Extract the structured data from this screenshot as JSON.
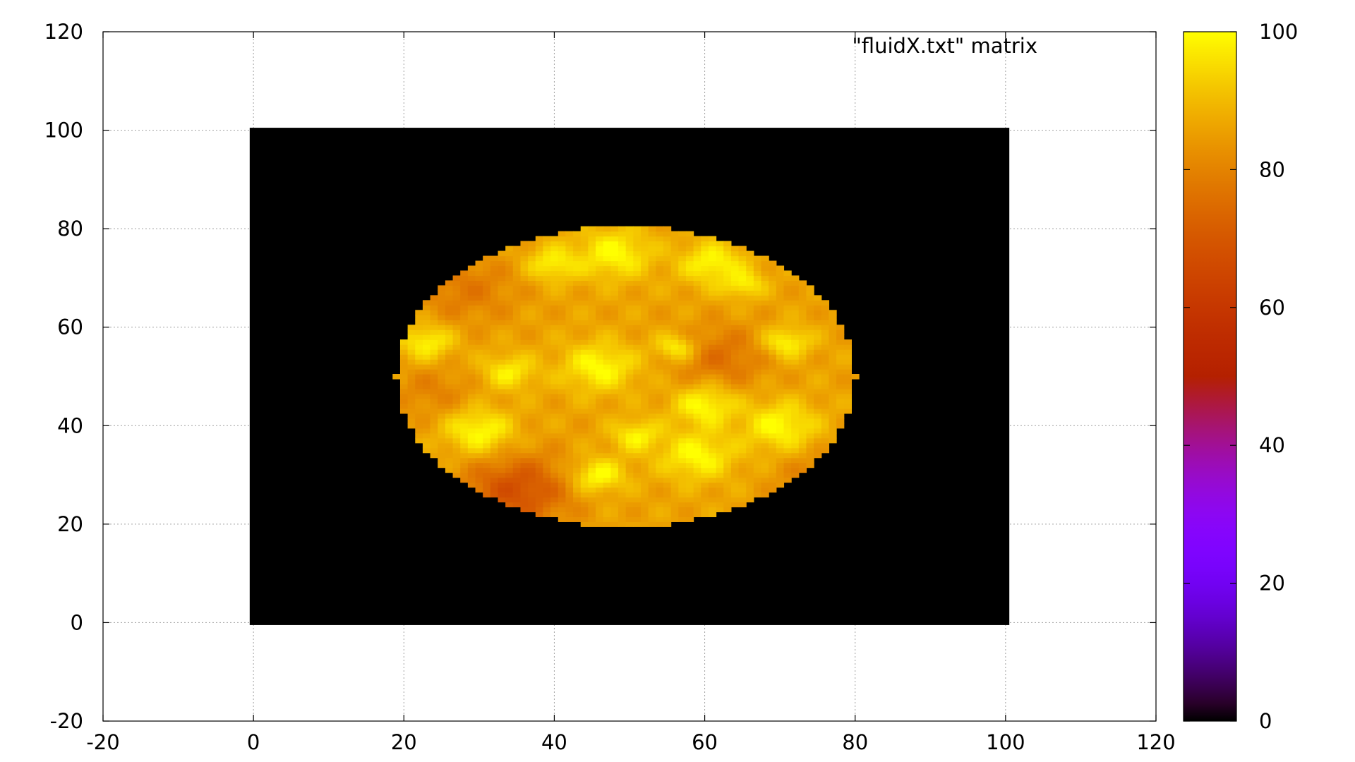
{
  "chart_data": {
    "type": "heatmap",
    "series_name": "\"fluidX.txt\" matrix",
    "xlim": [
      -20,
      120
    ],
    "ylim": [
      -20,
      120
    ],
    "x_ticks": [
      -20,
      0,
      20,
      40,
      60,
      80,
      100,
      120
    ],
    "y_ticks": [
      -20,
      0,
      20,
      40,
      60,
      80,
      100,
      120
    ],
    "x_tick_labels": [
      "-20",
      "0",
      "20",
      "40",
      "60",
      "80",
      "100",
      "120"
    ],
    "y_tick_labels": [
      "-20",
      "0",
      "20",
      "40",
      "60",
      "80",
      "100",
      "120"
    ],
    "grid": true,
    "legend_position": "top-right",
    "matrix_extent": {
      "x": [
        0,
        100
      ],
      "y": [
        0,
        100
      ]
    },
    "background_value": 0,
    "disk": {
      "center": [
        49.5,
        50
      ],
      "radius_x": 30.5,
      "radius_y": 30.5
    },
    "disk_base_value": 86,
    "hot_spots": [
      {
        "x": 48,
        "y": 75,
        "r": 3.5,
        "v": 100
      },
      {
        "x": 40,
        "y": 73,
        "r": 2.5,
        "v": 99
      },
      {
        "x": 61,
        "y": 73,
        "r": 3,
        "v": 100
      },
      {
        "x": 46,
        "y": 52,
        "r": 3.5,
        "v": 100
      },
      {
        "x": 23,
        "y": 57,
        "r": 2.5,
        "v": 99
      },
      {
        "x": 34,
        "y": 51,
        "r": 2.5,
        "v": 98
      },
      {
        "x": 30,
        "y": 39,
        "r": 3.2,
        "v": 100
      },
      {
        "x": 60,
        "y": 44,
        "r": 3,
        "v": 100
      },
      {
        "x": 70,
        "y": 40,
        "r": 3.5,
        "v": 100
      },
      {
        "x": 59,
        "y": 34,
        "r": 3.5,
        "v": 100
      },
      {
        "x": 46,
        "y": 30,
        "r": 2.5,
        "v": 100
      },
      {
        "x": 51,
        "y": 38,
        "r": 2.3,
        "v": 99
      },
      {
        "x": 71,
        "y": 57,
        "r": 2.2,
        "v": 99
      },
      {
        "x": 56,
        "y": 56,
        "r": 2,
        "v": 97
      },
      {
        "x": 65,
        "y": 69,
        "r": 2,
        "v": 99
      }
    ],
    "cool_spots": [
      {
        "x": 35,
        "y": 27,
        "r": 5,
        "v": 68
      },
      {
        "x": 62,
        "y": 54,
        "r": 4.5,
        "v": 76
      },
      {
        "x": 28,
        "y": 68,
        "r": 5,
        "v": 78
      },
      {
        "x": 24,
        "y": 47,
        "r": 4,
        "v": 80
      },
      {
        "x": 75,
        "y": 30,
        "r": 4,
        "v": 80
      }
    ],
    "colorbar": {
      "range": [
        0,
        100
      ],
      "ticks": [
        0,
        20,
        40,
        60,
        80,
        100
      ],
      "tick_labels": [
        "0",
        "20",
        "40",
        "60",
        "80",
        "100"
      ],
      "palette": "black-blue-violet-red-yellow"
    }
  }
}
